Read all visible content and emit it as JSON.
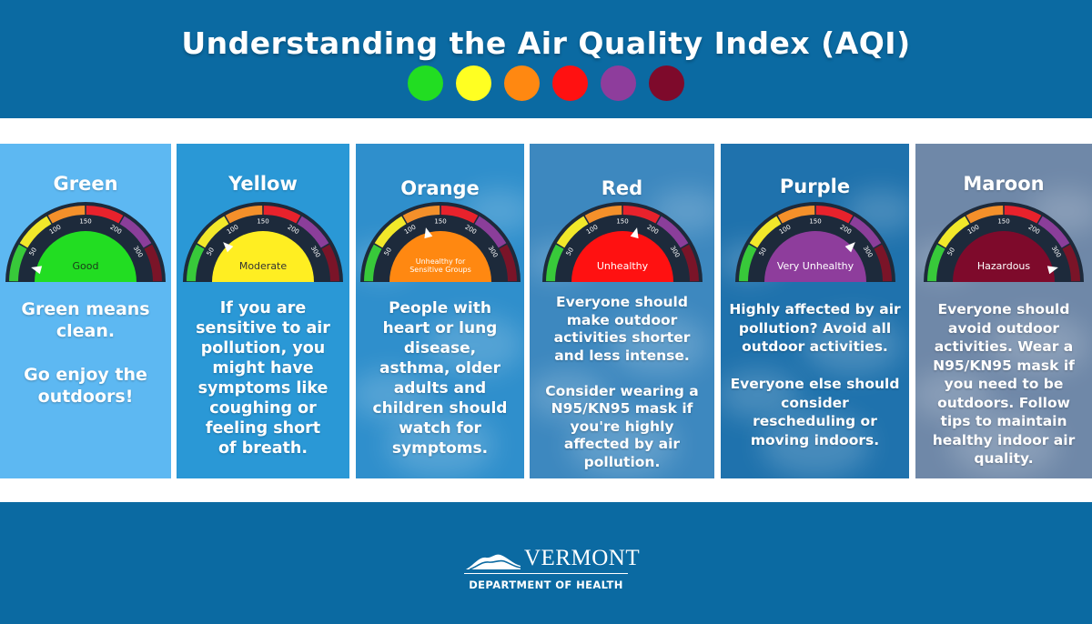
{
  "header": {
    "title": "Understanding the Air Quality Index (AQI)",
    "dot_colors": [
      "#22dd22",
      "#ffff22",
      "#ff8811",
      "#ff1111",
      "#8e3d9c",
      "#7e0a2b"
    ]
  },
  "gauge": {
    "tick_labels": [
      "50",
      "100",
      "150",
      "200",
      "300"
    ],
    "band_colors": [
      "#38c93a",
      "#f2e82a",
      "#f4902a",
      "#e8222c",
      "#8b3e9a",
      "#7a1428"
    ]
  },
  "cards": [
    {
      "name": "Green",
      "gauge_label": "Good",
      "gauge_fill": "#22dd22",
      "label_color": "#1a3a1a",
      "needle_aqi": 25,
      "text": "Green means clean.\n\nGo enjoy the outdoors!",
      "bg": "#5db8f2"
    },
    {
      "name": "Yellow",
      "gauge_label": "Moderate",
      "gauge_fill": "#ffee22",
      "label_color": "#333333",
      "needle_aqi": 75,
      "text": "If you are sensitive to air pollution, you might have symptoms like coughing or feeling short of breath.",
      "bg": "#2a98d6"
    },
    {
      "name": "Orange",
      "gauge_label": "Unhealthy for Sensitive Groups",
      "gauge_fill": "#ff8811",
      "label_color": "#ffffff",
      "needle_aqi": 125,
      "text": "People with heart or lung disease, asthma, older adults and children should watch for symptoms.",
      "bg": "#2f8fcc"
    },
    {
      "name": "Red",
      "gauge_label": "Unhealthy",
      "gauge_fill": "#ff1111",
      "label_color": "#ffffff",
      "needle_aqi": 175,
      "text": "Everyone should make outdoor activities shorter and less intense.\n\nConsider wearing a N95/KN95 mask if you're highly affected by air pollution.",
      "bg": "#3d88bf"
    },
    {
      "name": "Purple",
      "gauge_label": "Very Unhealthy",
      "gauge_fill": "#8e3d9c",
      "label_color": "#ffffff",
      "needle_aqi": 250,
      "text": "Highly affected by air pollution? Avoid all outdoor activities.\n\nEveryone else should consider rescheduling or moving indoors.",
      "bg": "#1f72ad"
    },
    {
      "name": "Maroon",
      "gauge_label": "Hazardous",
      "gauge_fill": "#7e0a2b",
      "label_color": "#ffffff",
      "needle_aqi": 400,
      "text": "Everyone should avoid outdoor activities. Wear a N95/KN95 mask if you need to be outdoors. Follow tips to maintain healthy indoor air quality.",
      "bg": "#6f88a8"
    }
  ],
  "footer": {
    "logo_word": "VERMONT",
    "logo_dept": "DEPARTMENT OF HEALTH"
  }
}
